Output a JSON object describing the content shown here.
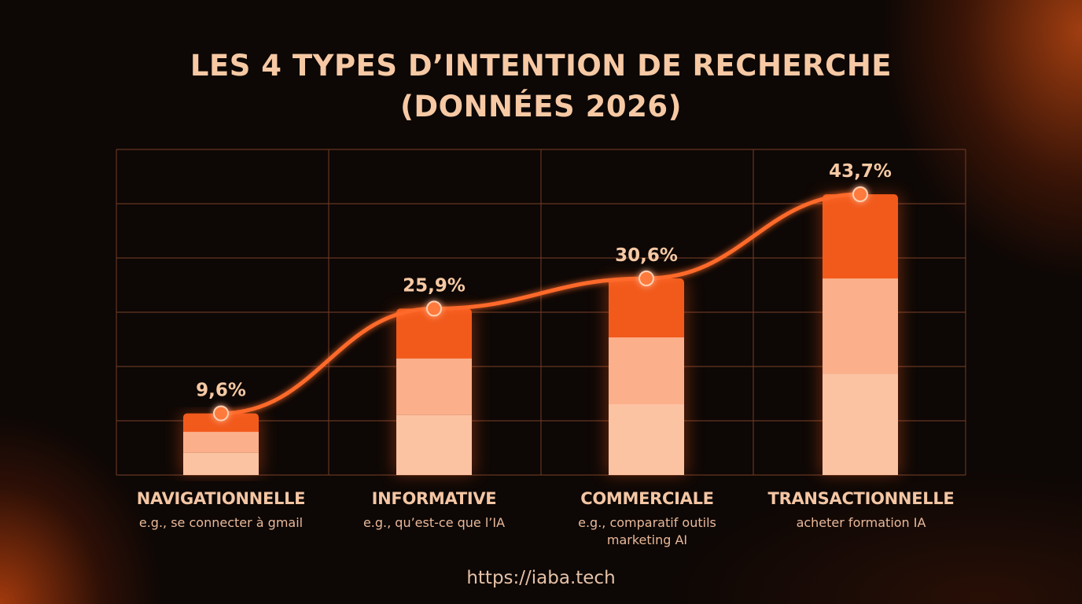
{
  "title_line1": "LES 4 TYPES D’INTENTION DE RECHERCHE",
  "title_line2": "(DONNÉES 2026)",
  "source": "https://iaba.tech",
  "colors": {
    "segment_top": "#f25a1c",
    "segment_mid": "#fbb08b",
    "segment_bottom": "#fcc3a3",
    "line": "#ff6a2a",
    "grid": "#6e3a26",
    "label": "#f6c9a4"
  },
  "chart_data": {
    "type": "bar",
    "title": "LES 4 TYPES D’INTENTION DE RECHERCHE (DONNÉES 2026)",
    "categories": [
      "NAVIGATIONNELLE",
      "INFORMATIVE",
      "COMMERCIALE",
      "TRANSACTIONNELLE"
    ],
    "examples": [
      [
        "e.g., se connecter à gmail"
      ],
      [
        "e.g., qu’est-ce que l’IA"
      ],
      [
        "e.g., comparatif outils",
        "marketing AI"
      ],
      [
        "acheter formation IA"
      ]
    ],
    "values": [
      9.6,
      25.9,
      30.6,
      43.7
    ],
    "data_labels": [
      "9,6%",
      "25,9%",
      "30,6%",
      "43,7%"
    ],
    "overlay": "line connecting bar tops",
    "grid": true,
    "legend": "none"
  }
}
